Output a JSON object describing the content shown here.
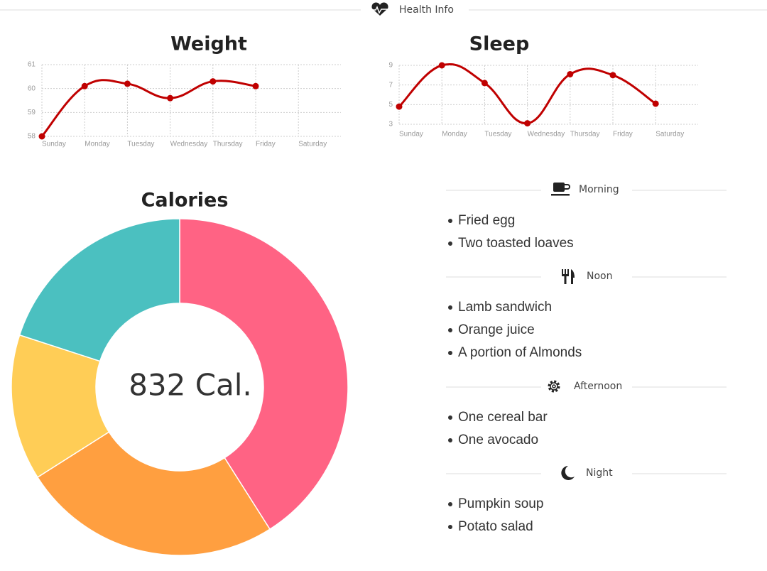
{
  "header": {
    "title": "Health Info"
  },
  "chart_data": [
    {
      "type": "line",
      "title": "Weight",
      "categories": [
        "Sunday",
        "Monday",
        "Tuesday",
        "Wednesday",
        "Thursday",
        "Friday",
        "Saturday"
      ],
      "values": [
        58,
        60.1,
        60.2,
        59.6,
        60.3,
        60.1,
        null
      ],
      "color": "#c00000",
      "ylim": [
        58,
        61
      ],
      "yticks": [
        58,
        59,
        60,
        61
      ],
      "grid": true,
      "smooth": true
    },
    {
      "type": "line",
      "title": "Sleep",
      "categories": [
        "Sunday",
        "Monday",
        "Tuesday",
        "Wednesday",
        "Thursday",
        "Friday",
        "Saturday"
      ],
      "values": [
        4.8,
        9,
        7.2,
        3.1,
        8.1,
        8,
        5.1
      ],
      "color": "#c00000",
      "ylim": [
        3,
        9
      ],
      "yticks": [
        3,
        5,
        7,
        9
      ],
      "grid": true,
      "smooth": true
    },
    {
      "type": "donut",
      "title": "Calories",
      "center_label": "832 Cal.",
      "values": [
        41,
        25,
        14,
        20
      ],
      "colors": [
        "#ff6384",
        "#ff9f40",
        "#ffcd56",
        "#4bc0c0"
      ]
    }
  ],
  "meals": [
    {
      "title": "Morning",
      "items": [
        "Fried egg",
        "Two toasted loaves"
      ]
    },
    {
      "title": "Noon",
      "items": [
        "Lamb sandwich",
        "Orange juice",
        "A portion of Almonds"
      ]
    },
    {
      "title": "Afternoon",
      "items": [
        "One cereal bar",
        "One avocado"
      ]
    },
    {
      "title": "Night",
      "items": [
        "Pumpkin soup",
        "Potato salad"
      ]
    }
  ]
}
